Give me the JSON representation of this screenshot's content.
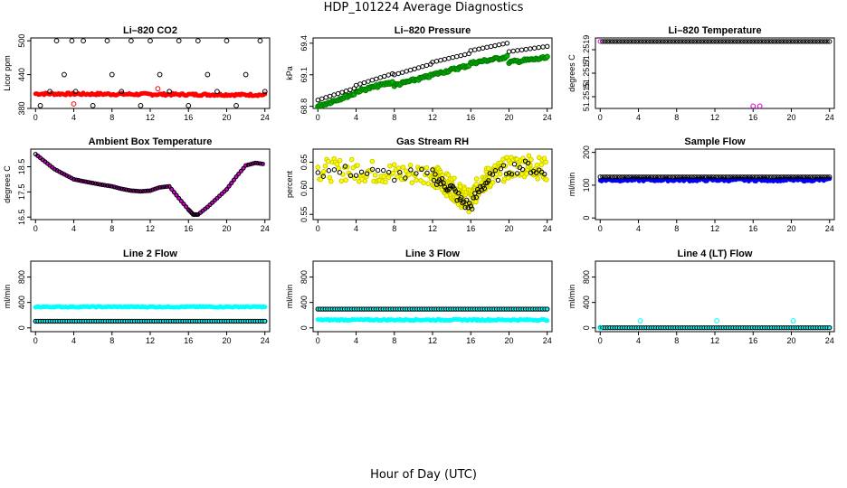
{
  "page": {
    "title": "HDP_101224  Average Diagnostics",
    "xlabel": "Hour of Day (UTC)"
  },
  "chart_data": [
    {
      "type": "scatter",
      "title": "Li–820 CO2",
      "ylabel": "Licor ppm",
      "xlim": [
        -0.5,
        24.5
      ],
      "ylim": [
        380,
        505
      ],
      "xticks": [
        0,
        4,
        8,
        12,
        16,
        20,
        24
      ],
      "yticks": [
        380,
        440,
        500
      ],
      "series": [
        {
          "name": "average",
          "color": "#ff0000",
          "style": "dense-band",
          "x": [
            0,
            24
          ],
          "y": [
            406,
            404
          ],
          "jitter": 2
        },
        {
          "name": "max",
          "color": "#000000",
          "style": "markers",
          "x": [
            0.5,
            1.5,
            2.2,
            3,
            3.8,
            4.2,
            5,
            6,
            7.5,
            8,
            9,
            10,
            11,
            12,
            13,
            14,
            15,
            16,
            17,
            18,
            19,
            20,
            21,
            22,
            23.5,
            24
          ],
          "y": [
            385,
            410,
            500,
            440,
            500,
            410,
            500,
            385,
            500,
            440,
            410,
            500,
            385,
            500,
            440,
            410,
            500,
            385,
            500,
            440,
            410,
            500,
            385,
            440,
            500,
            410
          ]
        },
        {
          "name": "outliers",
          "color": "#ff0000",
          "style": "markers",
          "x": [
            4,
            12.8
          ],
          "y": [
            388,
            415
          ]
        }
      ]
    },
    {
      "type": "scatter",
      "title": "Li–820 Pressure",
      "ylabel": "kPa",
      "xlim": [
        -0.5,
        24.5
      ],
      "ylim": [
        68.78,
        69.45
      ],
      "xticks": [
        0,
        4,
        8,
        12,
        16,
        20,
        24
      ],
      "yticks": [
        68.8,
        69.1,
        69.4
      ],
      "series": [
        {
          "name": "sample",
          "color": "#00bb00",
          "style": "dense-segments",
          "segments": [
            [
              0,
              68.8,
              3.8,
              68.92
            ],
            [
              4,
              68.94,
              7.8,
              69.03
            ],
            [
              8,
              69.0,
              11.8,
              69.09
            ],
            [
              12,
              69.1,
              15.8,
              69.19
            ],
            [
              16,
              69.21,
              19.8,
              69.27
            ],
            [
              20,
              69.22,
              24,
              69.26
            ]
          ]
        },
        {
          "name": "instrument",
          "color": "#000000",
          "style": "open-circles",
          "segments": [
            [
              0,
              68.86,
              3.8,
              68.97
            ],
            [
              4,
              69.0,
              7.8,
              69.11
            ],
            [
              8,
              69.1,
              11.8,
              69.2
            ],
            [
              12,
              69.22,
              15.8,
              69.3
            ],
            [
              16,
              69.33,
              19.8,
              69.4
            ],
            [
              20,
              69.32,
              24,
              69.37
            ]
          ]
        }
      ]
    },
    {
      "type": "scatter",
      "title": "Li–820 Temperature",
      "ylabel": "degrees C",
      "xlim": [
        -0.5,
        24.5
      ],
      "ylim": [
        51.2514,
        51.252
      ],
      "xticks": [
        0,
        4,
        8,
        12,
        16,
        20,
        24
      ],
      "yticks": [
        51.2515,
        51.2517,
        51.2519
      ],
      "ytick_labels": [
        "51.2515",
        "51.2517",
        "51.2519"
      ],
      "series": [
        {
          "name": "temperature",
          "color": "#000000",
          "style": "open-circles",
          "x": [
            0,
            24
          ],
          "y": [
            51.25197,
            51.25197
          ],
          "count": 96,
          "first_color": "#dd00dd"
        },
        {
          "name": "dips",
          "color": "#dd00dd",
          "style": "markers",
          "x": [
            16,
            16.7
          ],
          "y": [
            51.25142,
            51.25142
          ]
        }
      ]
    },
    {
      "type": "line",
      "title": "Ambient Box Temperature",
      "ylabel": "degrees C",
      "xlim": [
        -0.5,
        24.5
      ],
      "ylim": [
        16.4,
        19.2
      ],
      "xticks": [
        0,
        4,
        8,
        12,
        16,
        20,
        24
      ],
      "yticks": [
        16.5,
        17.5,
        18.5
      ],
      "series": [
        {
          "name": "temperature",
          "color": "#dd00dd",
          "style": "thick-line-circles",
          "x": [
            0,
            1,
            2,
            3,
            4,
            5,
            6,
            7,
            8,
            9,
            10,
            11,
            12,
            13,
            14,
            15,
            16,
            16.5,
            17,
            18,
            19,
            20,
            21,
            22,
            23,
            24
          ],
          "y": [
            19.0,
            18.7,
            18.4,
            18.2,
            18.0,
            17.92,
            17.85,
            17.78,
            17.72,
            17.62,
            17.55,
            17.52,
            17.55,
            17.68,
            17.72,
            17.25,
            16.8,
            16.6,
            16.6,
            16.9,
            17.25,
            17.6,
            18.1,
            18.55,
            18.65,
            18.6
          ]
        }
      ]
    },
    {
      "type": "scatter",
      "title": "Gas Stream RH",
      "ylabel": "percent",
      "xlim": [
        -0.5,
        24.5
      ],
      "ylim": [
        0.54,
        0.675
      ],
      "xticks": [
        0,
        4,
        8,
        12,
        16,
        20,
        24
      ],
      "yticks": [
        0.55,
        0.6,
        0.65
      ],
      "ytick_labels": [
        "0.55",
        "0.60",
        "0.65"
      ],
      "series": [
        {
          "name": "sample",
          "color": "#ffff00",
          "style": "noisy-band",
          "x": [
            0,
            4,
            8,
            12,
            13,
            14,
            15,
            16,
            17,
            18,
            20,
            22,
            24
          ],
          "y": [
            0.635,
            0.635,
            0.628,
            0.628,
            0.612,
            0.602,
            0.585,
            0.575,
            0.61,
            0.622,
            0.64,
            0.645,
            0.635
          ],
          "spread": 0.022
        },
        {
          "name": "average",
          "color": "#000000",
          "style": "open-circles",
          "x": [
            0,
            4,
            8,
            12,
            13,
            14,
            15,
            16,
            17,
            18,
            20,
            22,
            24
          ],
          "y": [
            0.632,
            0.632,
            0.625,
            0.625,
            0.61,
            0.6,
            0.575,
            0.565,
            0.6,
            0.618,
            0.638,
            0.642,
            0.625
          ],
          "spread": 0.012
        }
      ]
    },
    {
      "type": "scatter",
      "title": "Sample Flow",
      "ylabel": "ml/min",
      "xlim": [
        -0.5,
        24.5
      ],
      "ylim": [
        -5,
        210
      ],
      "xticks": [
        0,
        4,
        8,
        12,
        16,
        20,
        24
      ],
      "yticks": [
        0,
        100,
        200
      ],
      "series": [
        {
          "name": "flow",
          "color": "#0000ff",
          "style": "dense-band",
          "x": [
            0,
            24
          ],
          "y": [
            116,
            116
          ],
          "jitter": 4
        },
        {
          "name": "setpoint",
          "color": "#000000",
          "style": "open-circles",
          "x": [
            0,
            24
          ],
          "y": [
            125,
            125
          ],
          "count": 96
        }
      ]
    },
    {
      "type": "scatter",
      "title": "Line 2 Flow",
      "ylabel": "ml/min",
      "xlim": [
        -0.5,
        24.5
      ],
      "ylim": [
        -60,
        1050
      ],
      "xticks": [
        0,
        4,
        8,
        12,
        16,
        20,
        24
      ],
      "yticks": [
        0,
        400,
        800
      ],
      "series": [
        {
          "name": "line2",
          "color": "#00ffff",
          "style": "dense-band",
          "x": [
            0,
            24
          ],
          "y": [
            330,
            330
          ],
          "jitter": 8
        },
        {
          "name": "line2-avg",
          "color": "#000000",
          "style": "open-circles",
          "x": [
            0,
            24
          ],
          "y": [
            105,
            105
          ],
          "count": 96,
          "fill": "#00ffff"
        }
      ]
    },
    {
      "type": "scatter",
      "title": "Line 3 Flow",
      "ylabel": "ml/min",
      "xlim": [
        -0.5,
        24.5
      ],
      "ylim": [
        -60,
        1050
      ],
      "xticks": [
        0,
        4,
        8,
        12,
        16,
        20,
        24
      ],
      "yticks": [
        0,
        400,
        800
      ],
      "series": [
        {
          "name": "line3",
          "color": "#00ffff",
          "style": "dense-band",
          "x": [
            0,
            24
          ],
          "y": [
            125,
            125
          ],
          "jitter": 10
        },
        {
          "name": "line3-avg",
          "color": "#000000",
          "style": "open-circles",
          "x": [
            0,
            24
          ],
          "y": [
            295,
            295
          ],
          "count": 96,
          "fill": "#00ffff"
        }
      ]
    },
    {
      "type": "scatter",
      "title": "Line 4 (LT) Flow",
      "ylabel": "ml/min",
      "xlim": [
        -0.5,
        24.5
      ],
      "ylim": [
        -60,
        1050
      ],
      "xticks": [
        0,
        4,
        8,
        12,
        16,
        20,
        24
      ],
      "yticks": [
        0,
        400,
        800
      ],
      "series": [
        {
          "name": "line4",
          "color": "#000000",
          "style": "open-circles",
          "x": [
            0,
            24
          ],
          "y": [
            2,
            2
          ],
          "count": 96,
          "fill": "#00ffff"
        },
        {
          "name": "line4-spikes",
          "color": "#00ffff",
          "style": "markers",
          "x": [
            0,
            4.2,
            12.2,
            20.2
          ],
          "y": [
            5,
            110,
            110,
            110
          ]
        }
      ]
    }
  ]
}
